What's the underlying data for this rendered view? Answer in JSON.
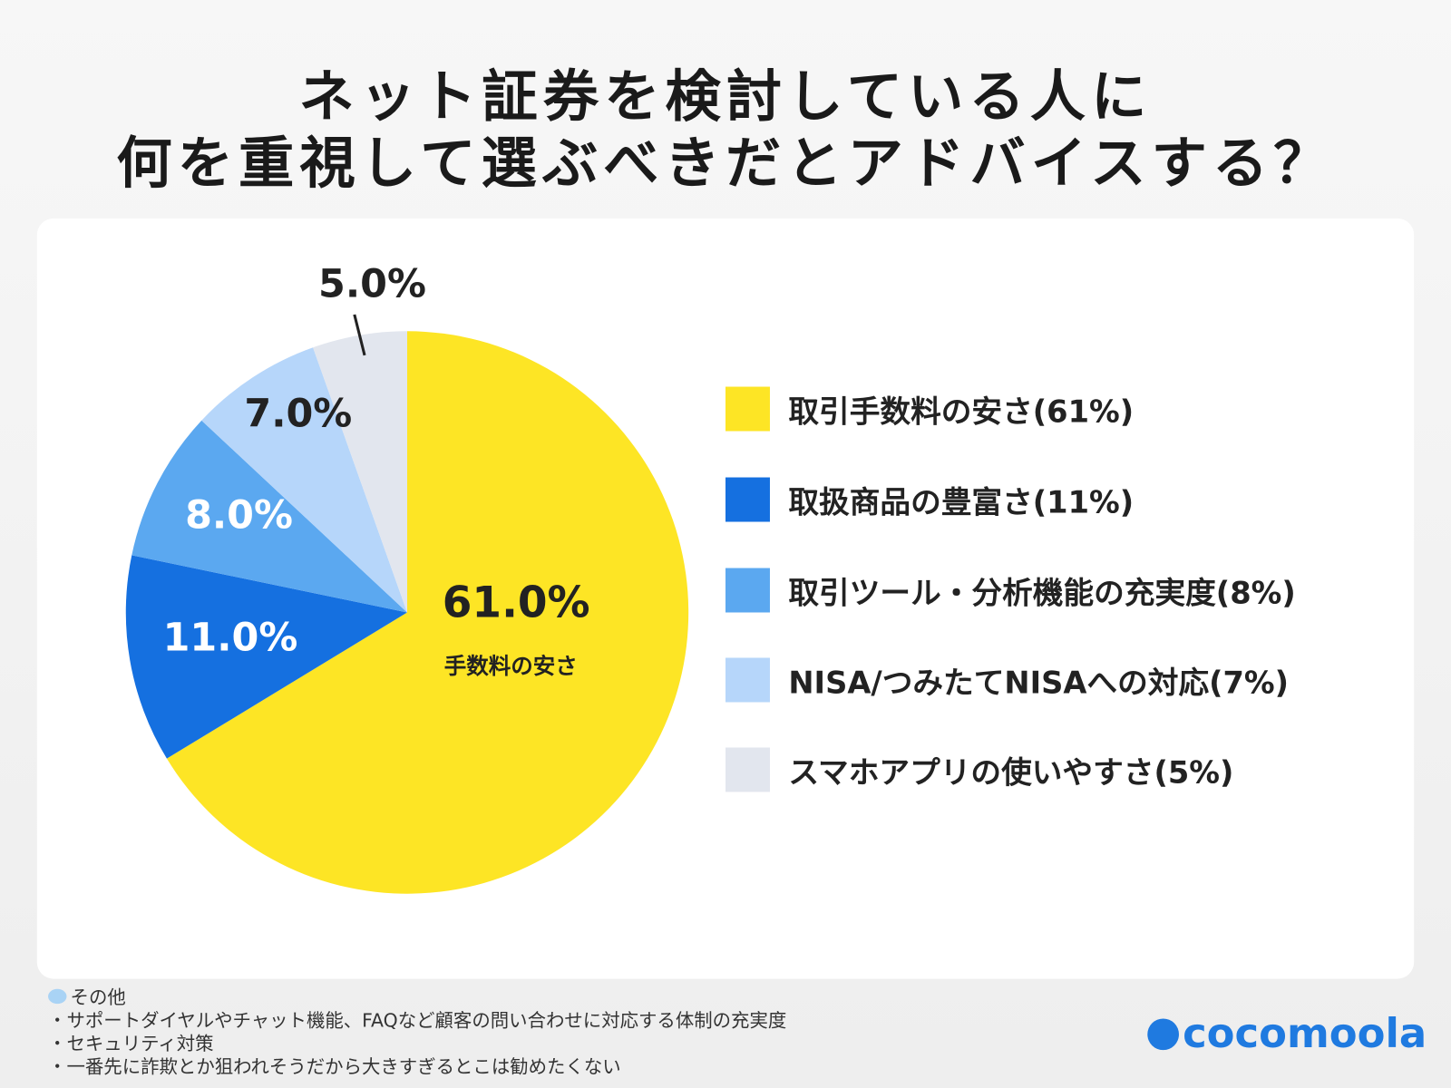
{
  "title_lines": [
    "ネット証券を検討している人に",
    "何を重視して選ぶべきだとアドバイスする？"
  ],
  "chart_data": {
    "type": "pie",
    "start": "top",
    "direction": "clockwise",
    "slices": [
      {
        "label": "取引手数料の安さ",
        "legend": "取引手数料の安さ(61%)",
        "value": 61.0,
        "display": "61.0%",
        "color": "#FDE525",
        "sublabel": "手数料の安さ"
      },
      {
        "label": "取扱商品の豊富さ",
        "legend": "取扱商品の豊富さ(11%)",
        "value": 11.0,
        "display": "11.0%",
        "color": "#1570E0"
      },
      {
        "label": "取引ツール・分析機能の充実度",
        "legend": "取引ツール・分析機能の充実度(8%)",
        "value": 8.0,
        "display": "8.0%",
        "color": "#5BA8F0"
      },
      {
        "label": "NISA/つみたてNISAへの対応",
        "legend": "NISA/つみたてNISAへの対応(7%)",
        "value": 7.0,
        "display": "7.0%",
        "color": "#B6D6FA"
      },
      {
        "label": "スマホアプリの使いやすさ",
        "legend": "スマホアプリの使いやすさ(5%)",
        "value": 5.0,
        "display": "5.0%",
        "color": "#E2E6EE"
      }
    ],
    "legend_placement": "right"
  },
  "notes": {
    "heading": "その他",
    "items": [
      "・サポートダイヤルやチャット機能、FAQなど顧客の問い合わせに対応する体制の充実度",
      "・セキュリティ対策",
      "・一番先に詐欺とか狙われそうだから大きすぎるとこは勧めたくない"
    ]
  },
  "logo": "cocomoola"
}
